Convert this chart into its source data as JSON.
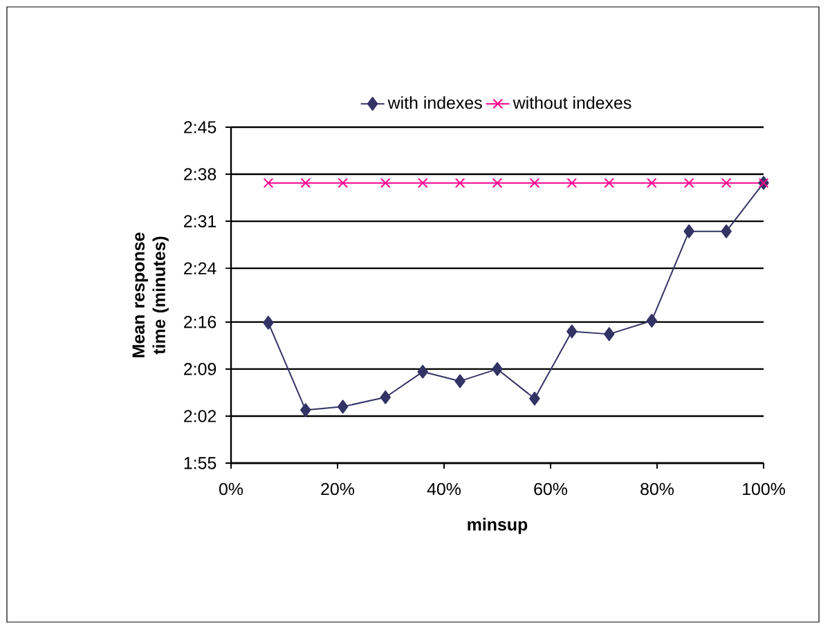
{
  "chart_data": {
    "type": "line",
    "xlabel": "minsup",
    "ylabel": "Mean response time (minutes)",
    "x": [
      7,
      14,
      21,
      29,
      36,
      43,
      50,
      57,
      64,
      71,
      79,
      86,
      93,
      100
    ],
    "series": [
      {
        "name": "with indexes",
        "color": "#333366",
        "marker": "diamond",
        "values": [
          135.9,
          122.9,
          123.4,
          124.8,
          128.6,
          127.2,
          129.0,
          124.6,
          134.6,
          134.2,
          136.2,
          149.5,
          149.5,
          156.7
        ]
      },
      {
        "name": "without indexes",
        "color": "#ff0090",
        "marker": "cross",
        "values": [
          156.7,
          156.7,
          156.7,
          156.7,
          156.7,
          156.7,
          156.7,
          156.7,
          156.7,
          156.7,
          156.7,
          156.7,
          156.7,
          156.7
        ]
      }
    ],
    "xlim": [
      0,
      100
    ],
    "xticks": [
      {
        "value": 0,
        "label": "0%"
      },
      {
        "value": 20,
        "label": "20%"
      },
      {
        "value": 40,
        "label": "40%"
      },
      {
        "value": 60,
        "label": "60%"
      },
      {
        "value": 80,
        "label": "80%"
      },
      {
        "value": 100,
        "label": "100%"
      }
    ],
    "ylim": [
      115,
      165
    ],
    "yticks": [
      {
        "value": 115,
        "label": "1:55"
      },
      {
        "value": 122,
        "label": "2:02"
      },
      {
        "value": 129,
        "label": "2:09"
      },
      {
        "value": 136,
        "label": "2:16"
      },
      {
        "value": 144,
        "label": "2:24"
      },
      {
        "value": 151,
        "label": "2:31"
      },
      {
        "value": 158,
        "label": "2:38"
      },
      {
        "value": 165,
        "label": "2:45"
      }
    ],
    "grid": "y",
    "legend": "top",
    "line_style": "solid"
  }
}
